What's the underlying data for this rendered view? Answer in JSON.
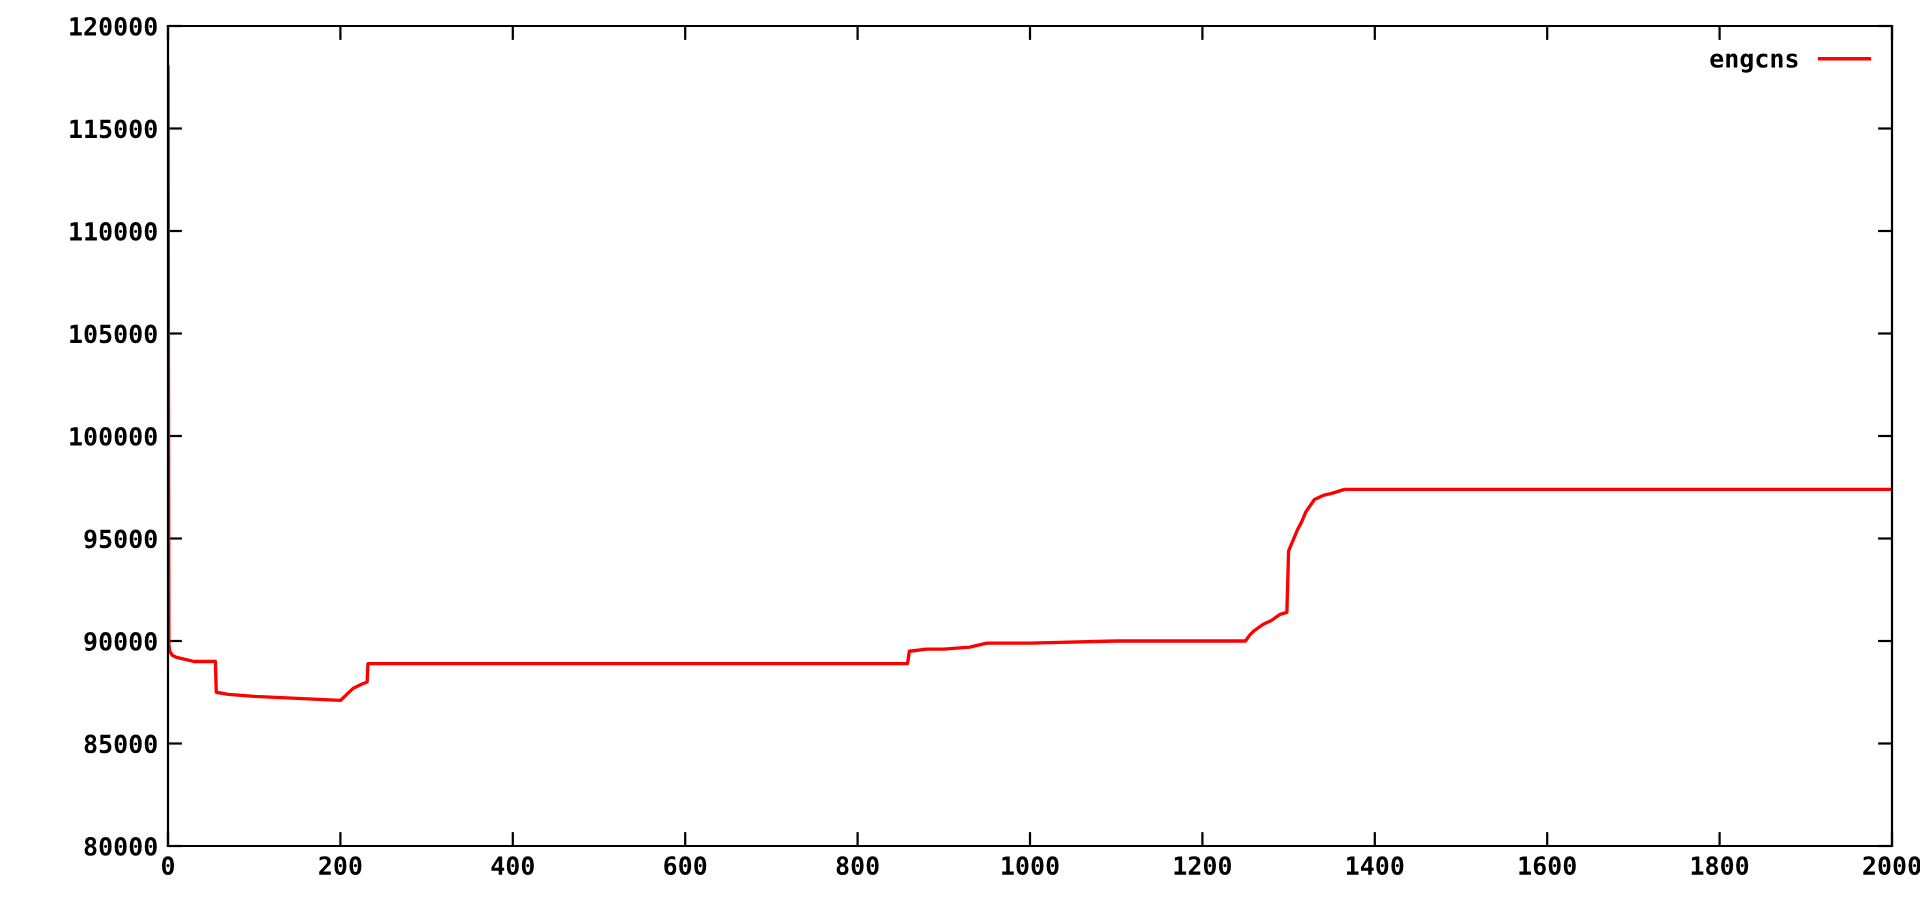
{
  "chart_data": {
    "type": "line",
    "xlim": [
      0,
      2000
    ],
    "xticks": [
      0,
      200,
      400,
      600,
      800,
      1000,
      1200,
      1400,
      1600,
      1800,
      2000
    ],
    "ylim": [
      80000,
      120000
    ],
    "yticks": [
      80000,
      85000,
      90000,
      95000,
      100000,
      105000,
      110000,
      115000,
      120000
    ],
    "grid": false,
    "legend": "top right",
    "marker": "none",
    "line_style": "solid",
    "series": [
      {
        "name": "engcns",
        "color": "#ff0000",
        "x": [
          0,
          1,
          2,
          5,
          10,
          20,
          30,
          55,
          56,
          70,
          100,
          150,
          200,
          205,
          215,
          225,
          231,
          232,
          400,
          600,
          800,
          858,
          860,
          880,
          900,
          930,
          940,
          950,
          1000,
          1100,
          1250,
          1255,
          1260,
          1270,
          1280,
          1290,
          1298,
          1300,
          1305,
          1310,
          1315,
          1320,
          1330,
          1340,
          1350,
          1365,
          1500,
          1800,
          2000
        ],
        "values": [
          118000,
          89800,
          89500,
          89300,
          89200,
          89100,
          89000,
          89000,
          87500,
          87400,
          87300,
          87200,
          87100,
          87300,
          87700,
          87900,
          88000,
          88900,
          88900,
          88900,
          88900,
          88900,
          89500,
          89600,
          89600,
          89700,
          89800,
          89900,
          89900,
          90000,
          90000,
          90300,
          90500,
          90800,
          91000,
          91300,
          91400,
          94400,
          94900,
          95400,
          95800,
          96300,
          96900,
          97100,
          97200,
          97400,
          97400,
          97400,
          97400
        ]
      }
    ]
  }
}
